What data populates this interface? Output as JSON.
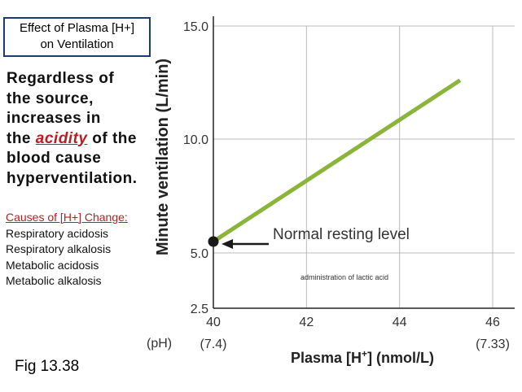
{
  "slide": {
    "title_line1": "Effect of Plasma [H+]",
    "title_line2": "on Ventilation",
    "body_lines": [
      "Regardless of",
      "the source,",
      "increases in"
    ],
    "body_acidity_pre": "the ",
    "body_acidity_word": "acidity",
    "body_acidity_post": " of the",
    "body_lines2": [
      "blood cause",
      "hyperventilation."
    ],
    "causes_heading": "Causes of [H+] Change:",
    "causes": [
      "Respiratory acidosis",
      "Respiratory alkalosis",
      "Metabolic acidosis",
      "Metabolic alkalosis"
    ],
    "figure_label": "Fig 13.38"
  },
  "chart_data": {
    "type": "line",
    "ylabel": "Minute ventilation (L/min)",
    "xlabel": "Plasma [H+] (nmol/L)",
    "xlabel_main": "Plasma [H",
    "xlabel_sup": "+",
    "xlabel_tail": "] (nmol/L)",
    "ph_label": "(pH)",
    "x_ticks": [
      40,
      42,
      44,
      46
    ],
    "x_tick_labels": [
      "40",
      "42",
      "44",
      "46"
    ],
    "ph_ticks": [
      {
        "x": 40,
        "label": "(7.4)"
      },
      {
        "x": 46,
        "label": "(7.33)"
      }
    ],
    "y_ticks": [
      2.5,
      5.0,
      10.0,
      15.0
    ],
    "y_tick_labels": [
      "2.5",
      "5.0",
      "10.0",
      "15.0"
    ],
    "xlim": [
      40,
      46
    ],
    "ylim": [
      2.5,
      15.0
    ],
    "series": [
      {
        "x": [
          40.0,
          45.3
        ],
        "y": [
          5.5,
          12.6
        ],
        "color": "#8ab43a"
      }
    ],
    "resting_point": {
      "x": 40.0,
      "y": 5.5,
      "color": "#1a1a1a"
    },
    "annotations": [
      {
        "text": "Normal resting level"
      },
      {
        "text": "administration of lactic acid"
      }
    ],
    "colors": {
      "axis": "#222222",
      "grid": "#bbbbbb",
      "line": "#8ab43a",
      "arrow": "#1a1a1a"
    }
  }
}
